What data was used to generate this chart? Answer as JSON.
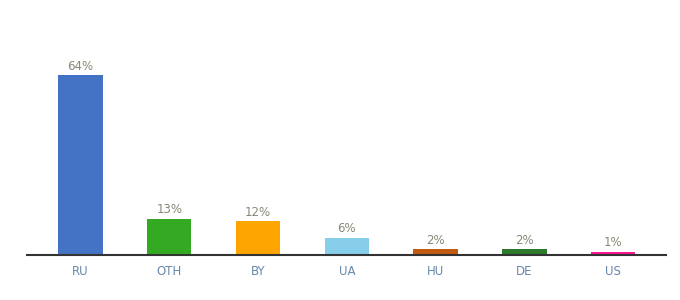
{
  "categories": [
    "RU",
    "OTH",
    "BY",
    "UA",
    "HU",
    "DE",
    "US"
  ],
  "values": [
    64,
    13,
    12,
    6,
    2,
    2,
    1
  ],
  "labels": [
    "64%",
    "13%",
    "12%",
    "6%",
    "2%",
    "2%",
    "1%"
  ],
  "bar_colors": [
    "#4472C4",
    "#33AA22",
    "#FFA500",
    "#87CEEB",
    "#C05A10",
    "#2A7A2A",
    "#FF1493"
  ],
  "background_color": "#ffffff",
  "ylim": [
    0,
    78
  ],
  "label_fontsize": 8.5,
  "tick_fontsize": 8.5,
  "label_color": "#888877",
  "tick_color": "#6688AA"
}
